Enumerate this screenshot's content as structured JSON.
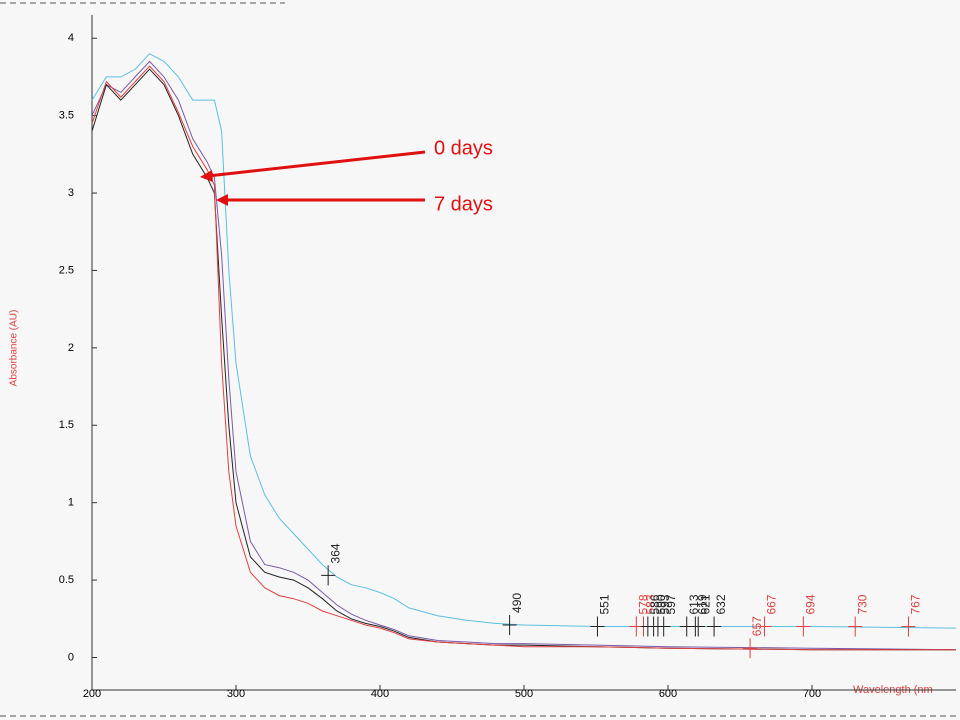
{
  "chart_data": {
    "type": "line",
    "y_label": "Absorbance (AU)",
    "x_label": "Wavelength (nm",
    "annotations": [
      "0 days",
      "7 days"
    ],
    "xlim": [
      200,
      800
    ],
    "ylim": [
      -0.21,
      4.15
    ],
    "xticks": [
      200,
      300,
      400,
      500,
      600,
      700
    ],
    "yticks": [
      0,
      0.5,
      1,
      1.5,
      2,
      2.5,
      3,
      3.5,
      4
    ],
    "x": [
      200,
      210,
      220,
      230,
      240,
      250,
      260,
      270,
      280,
      285,
      290,
      295,
      300,
      310,
      320,
      330,
      340,
      350,
      360,
      370,
      380,
      390,
      400,
      410,
      420,
      440,
      460,
      480,
      500,
      550,
      600,
      700,
      800
    ],
    "series": [
      {
        "color": "#5bc0de",
        "values": [
          3.6,
          3.75,
          3.75,
          3.8,
          3.9,
          3.85,
          3.75,
          3.6,
          3.6,
          3.6,
          3.4,
          2.5,
          1.9,
          1.3,
          1.05,
          0.9,
          0.8,
          0.7,
          0.6,
          0.52,
          0.47,
          0.45,
          0.42,
          0.38,
          0.32,
          0.27,
          0.24,
          0.22,
          0.21,
          0.2,
          0.2,
          0.2,
          0.19
        ]
      },
      {
        "color": "#7a5aa8",
        "values": [
          3.5,
          3.7,
          3.65,
          3.75,
          3.85,
          3.75,
          3.6,
          3.35,
          3.2,
          3.1,
          2.6,
          1.8,
          1.2,
          0.75,
          0.6,
          0.58,
          0.55,
          0.5,
          0.42,
          0.34,
          0.28,
          0.24,
          0.21,
          0.18,
          0.14,
          0.11,
          0.1,
          0.09,
          0.09,
          0.08,
          0.07,
          0.06,
          0.05
        ]
      },
      {
        "color": "#222222",
        "values": [
          3.4,
          3.7,
          3.6,
          3.7,
          3.8,
          3.7,
          3.5,
          3.25,
          3.1,
          3.0,
          2.2,
          1.5,
          1.0,
          0.65,
          0.55,
          0.52,
          0.5,
          0.45,
          0.38,
          0.3,
          0.25,
          0.22,
          0.2,
          0.17,
          0.13,
          0.1,
          0.09,
          0.08,
          0.08,
          0.07,
          0.06,
          0.05,
          0.05
        ]
      },
      {
        "color": "#e04040",
        "values": [
          3.45,
          3.72,
          3.62,
          3.72,
          3.82,
          3.72,
          3.52,
          3.3,
          3.15,
          3.05,
          1.9,
          1.2,
          0.85,
          0.55,
          0.45,
          0.4,
          0.38,
          0.35,
          0.3,
          0.27,
          0.24,
          0.21,
          0.19,
          0.16,
          0.12,
          0.1,
          0.09,
          0.08,
          0.07,
          0.07,
          0.06,
          0.05,
          0.05
        ]
      }
    ],
    "peaks": {
      "x": [
        364,
        490,
        551,
        578,
        583,
        586,
        590,
        593,
        597,
        613,
        619,
        621,
        632,
        657,
        667,
        694,
        730,
        767
      ],
      "y": [
        0.53,
        0.21,
        0.2,
        0.2,
        0.2,
        0.2,
        0.2,
        0.2,
        0.2,
        0.2,
        0.2,
        0.2,
        0.2,
        0.06,
        0.2,
        0.2,
        0.2,
        0.2
      ],
      "colors": [
        "#222222",
        "#222222",
        "#222222",
        "#e04040",
        "#e04040",
        "#222222",
        "#222222",
        "#222222",
        "#222222",
        "#222222",
        "#222222",
        "#222222",
        "#222222",
        "#e04040",
        "#e04040",
        "#e04040",
        "#e04040",
        "#e04040"
      ]
    }
  }
}
